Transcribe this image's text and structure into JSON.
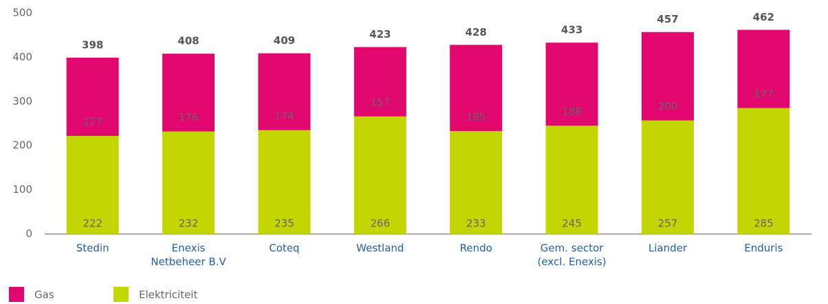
{
  "chart_data": {
    "type": "bar",
    "stacked": true,
    "categories": [
      [
        "Stedin"
      ],
      [
        "Enexis",
        "Netbeheer B.V"
      ],
      [
        "Coteq"
      ],
      [
        "Westland"
      ],
      [
        "Rendo"
      ],
      [
        "Gem. sector",
        "(excl. Enexis)"
      ],
      [
        "Liander"
      ],
      [
        "Enduris"
      ]
    ],
    "series": [
      {
        "name": "Gas",
        "color": "#e2066f",
        "values": [
          177,
          176,
          174,
          157,
          195,
          188,
          200,
          177
        ]
      },
      {
        "name": "Elektriciteit",
        "color": "#c4d600",
        "values": [
          222,
          232,
          235,
          266,
          233,
          245,
          257,
          285
        ]
      }
    ],
    "totals": [
      398,
      408,
      409,
      423,
      428,
      433,
      457,
      462
    ],
    "ylim": [
      0,
      500
    ],
    "yticks": [
      0,
      100,
      200,
      300,
      400,
      500
    ],
    "grid": false
  }
}
